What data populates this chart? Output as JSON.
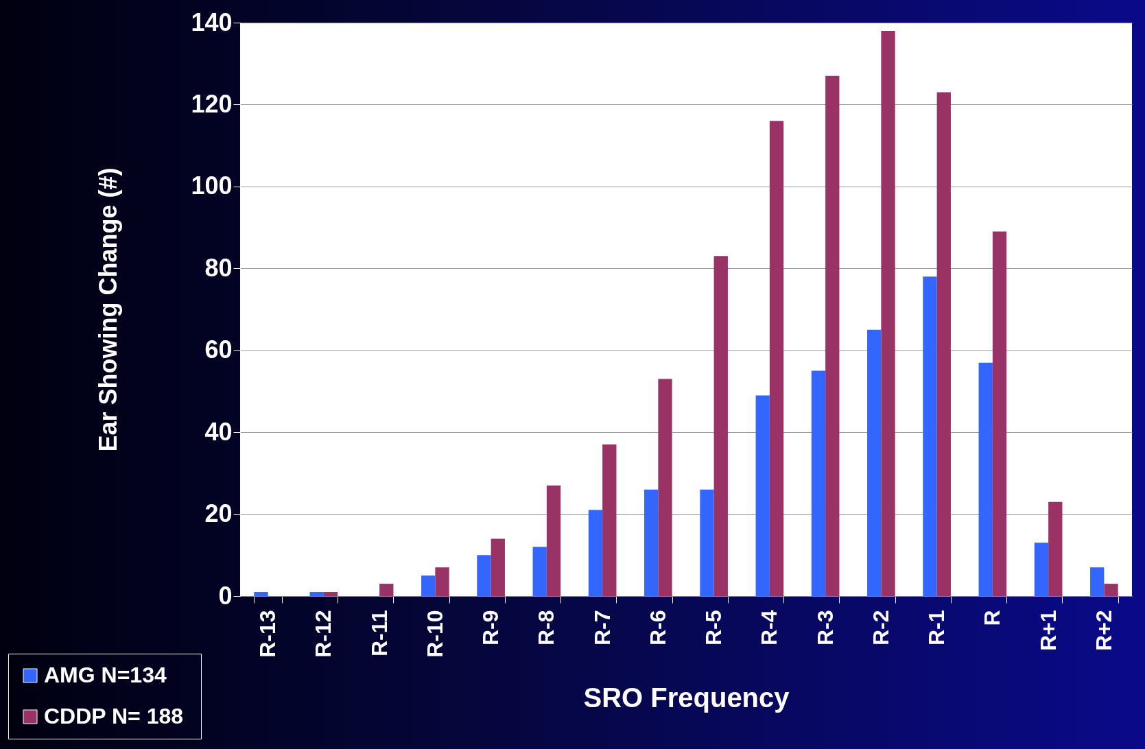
{
  "chart_data": {
    "type": "bar",
    "xlabel": "SRO Frequency",
    "ylabel": "Ear Showing Change (#)",
    "categories": [
      "R-13",
      "R-12",
      "R-11",
      "R-10",
      "R-9",
      "R-8",
      "R-7",
      "R-6",
      "R-5",
      "R-4",
      "R-3",
      "R-2",
      "R-1",
      "R",
      "R+1",
      "R+2"
    ],
    "series": [
      {
        "name": "AMG  N=134",
        "color": "#3366ff",
        "values": [
          1,
          1,
          0,
          5,
          10,
          12,
          21,
          26,
          26,
          49,
          55,
          65,
          78,
          57,
          13,
          7
        ]
      },
      {
        "name": "CDDP  N= 188",
        "color": "#993366",
        "values": [
          0,
          1,
          3,
          7,
          14,
          27,
          37,
          53,
          83,
          116,
          127,
          138,
          123,
          89,
          23,
          3
        ]
      }
    ],
    "ylim": [
      0,
      140
    ],
    "yticks": [
      0,
      20,
      40,
      60,
      80,
      100,
      120,
      140
    ],
    "grid": "y",
    "legend": "bottom left"
  }
}
